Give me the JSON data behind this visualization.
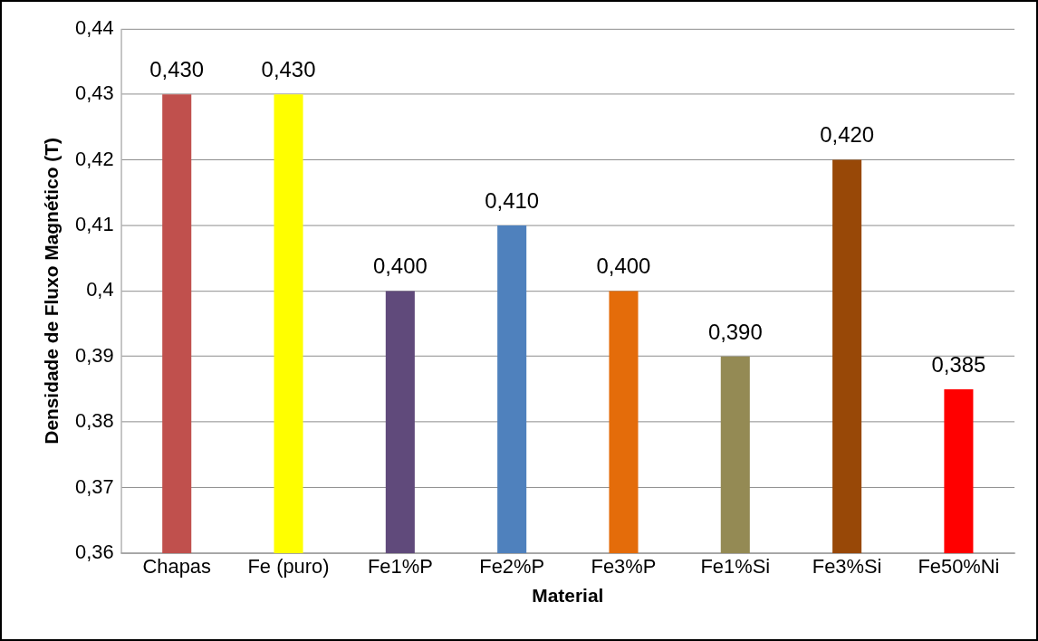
{
  "chart_data": {
    "type": "bar",
    "xlabel": "Material",
    "ylabel": "Densidade de Fluxo Magnético (T)",
    "categories": [
      "Chapas",
      "Fe (puro)",
      "Fe1%P",
      "Fe2%P",
      "Fe3%P",
      "Fe1%Si",
      "Fe3%Si",
      "Fe50%Ni"
    ],
    "values": [
      0.43,
      0.43,
      0.4,
      0.41,
      0.4,
      0.39,
      0.42,
      0.385
    ],
    "colors": [
      "#c0504d",
      "#ffff00",
      "#604a7b",
      "#4f81bd",
      "#e46c0a",
      "#948a54",
      "#984807",
      "#ff0000"
    ],
    "value_labels": [
      "0,430",
      "0,430",
      "0,400",
      "0,410",
      "0,400",
      "0,390",
      "0,420",
      "0,385"
    ],
    "ylim": [
      0.36,
      0.44
    ],
    "yticks": [
      {
        "value": 0.36,
        "label": "0,36"
      },
      {
        "value": 0.37,
        "label": "0,37"
      },
      {
        "value": 0.38,
        "label": "0,38"
      },
      {
        "value": 0.39,
        "label": "0,39"
      },
      {
        "value": 0.4,
        "label": "0,4"
      },
      {
        "value": 0.41,
        "label": "0,41"
      },
      {
        "value": 0.42,
        "label": "0,42"
      },
      {
        "value": 0.43,
        "label": "0,43"
      },
      {
        "value": 0.44,
        "label": "0,44"
      }
    ],
    "grid": "y"
  }
}
